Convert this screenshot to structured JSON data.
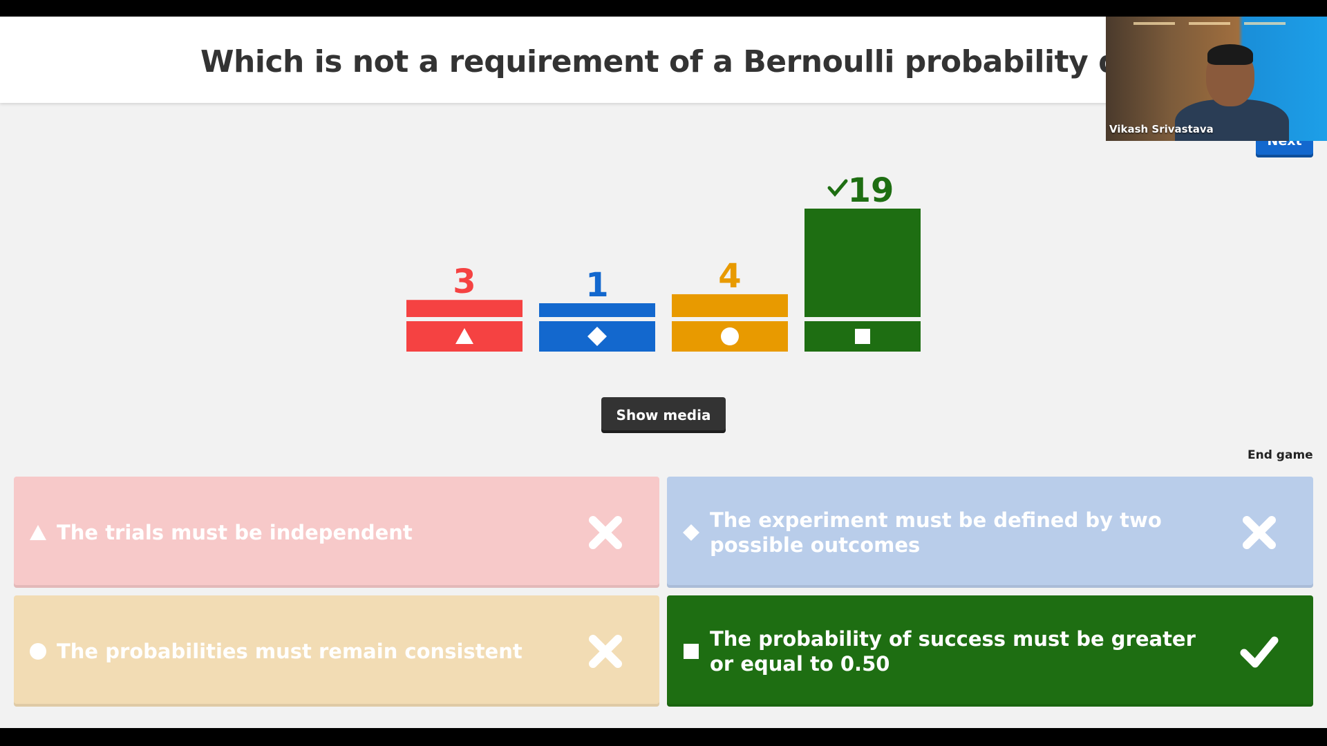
{
  "question": {
    "title": "Which is not a requirement of a Bernoulli probability distributio"
  },
  "controls": {
    "next_label": "Next",
    "show_media_label": "Show media",
    "end_game_label": "End game"
  },
  "chart_data": {
    "type": "bar",
    "categories": [
      "triangle",
      "diamond",
      "circle",
      "square"
    ],
    "values": [
      3,
      1,
      4,
      19
    ],
    "correct_index": 3,
    "colors": [
      "#f54242",
      "#1368ce",
      "#e89a00",
      "#1e6e12"
    ]
  },
  "answers": [
    {
      "shape": "triangle-icon",
      "text": "The trials must be independent",
      "correct": false,
      "color": "#f7c9c9"
    },
    {
      "shape": "diamond-icon",
      "text": "The experiment must be defined by two possible outcomes",
      "correct": false,
      "color": "#b9cdea"
    },
    {
      "shape": "circle-icon",
      "text": "The probabilities must remain consistent",
      "correct": false,
      "color": "#f2dcb4"
    },
    {
      "shape": "square-icon",
      "text": "The probability of success must be greater or equal to 0.50",
      "correct": true,
      "color": "#1e6e12"
    }
  ],
  "webcam": {
    "participant_name": "Vikash Srivastava"
  }
}
